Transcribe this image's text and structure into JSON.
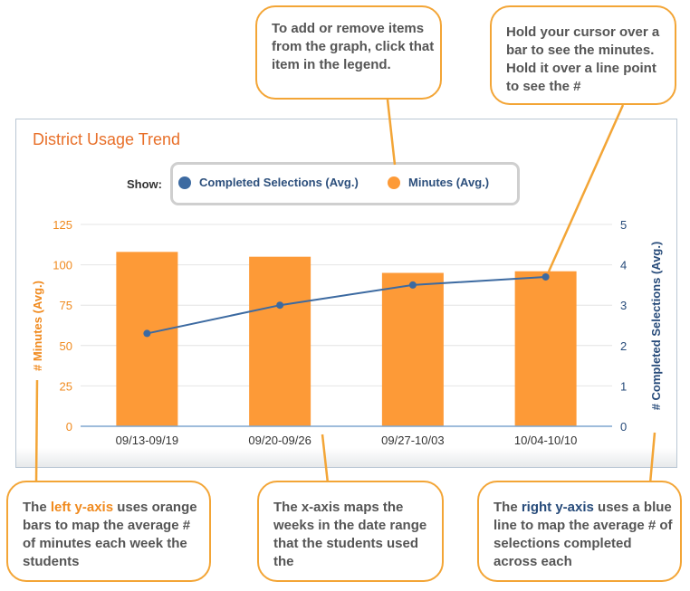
{
  "chart_data": {
    "type": "bar+line",
    "title": "District Usage Trend",
    "categories": [
      "09/13-09/19",
      "09/20-09/26",
      "09/27-10/03",
      "10/04-10/10"
    ],
    "series": [
      {
        "name": "Minutes (Avg.)",
        "type": "bar",
        "axis": "left",
        "color": "#fd9a37",
        "values": [
          108,
          105,
          95,
          96
        ]
      },
      {
        "name": "Completed Selections (Avg.)",
        "type": "line",
        "axis": "right",
        "color": "#3c6aa1",
        "values": [
          2.3,
          3.0,
          3.5,
          3.7
        ]
      }
    ],
    "y_left": {
      "label": "# Minutes (Avg.)",
      "ticks": [
        "0",
        "25",
        "50",
        "75",
        "100",
        "125"
      ],
      "range": [
        0,
        125
      ],
      "color": "#f08a1e"
    },
    "y_right": {
      "label": "# Completed Selections (Avg.)",
      "ticks": [
        "0",
        "1",
        "2",
        "3",
        "4",
        "5"
      ],
      "range": [
        0,
        5
      ],
      "color": "#274b7a"
    },
    "grid": true,
    "legend_placement": "top"
  },
  "legend": {
    "show_label": "Show:",
    "items": [
      {
        "label": "Completed Selections (Avg.)",
        "color": "#3c6aa1"
      },
      {
        "label": "Minutes (Avg.)",
        "color": "#fd9a37"
      }
    ]
  },
  "callouts": {
    "legend_tip": "To add or remove items from the graph, click that item in the legend.",
    "hover_tip": "Hold your cursor over a bar to see the minutes. Hold it over a line point to see the #",
    "left_axis": {
      "pre": "The ",
      "highlight": "left y-axis",
      "post": " uses orange bars to map the average # of minutes each week the students"
    },
    "x_axis": "The x-axis maps the weeks in the date range that the students used the",
    "right_axis": {
      "pre": "The ",
      "highlight": "right y-axis",
      "post": " uses a blue line to map the average # of selections completed across each"
    }
  },
  "colors": {
    "accent_orange": "#f3a536",
    "title_orange": "#e8702a",
    "navy": "#2c4f7c"
  }
}
